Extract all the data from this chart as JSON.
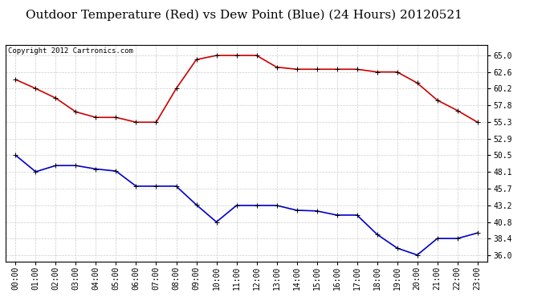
{
  "title": "Outdoor Temperature (Red) vs Dew Point (Blue) (24 Hours) 20120521",
  "copyright_text": "Copyright 2012 Cartronics.com",
  "hours": [
    "00:00",
    "01:00",
    "02:00",
    "03:00",
    "04:00",
    "05:00",
    "06:00",
    "07:00",
    "08:00",
    "09:00",
    "10:00",
    "11:00",
    "12:00",
    "13:00",
    "14:00",
    "15:00",
    "16:00",
    "17:00",
    "18:00",
    "19:00",
    "20:00",
    "21:00",
    "22:00",
    "23:00"
  ],
  "temp_red": [
    61.5,
    60.2,
    58.8,
    56.8,
    56.0,
    56.0,
    55.3,
    55.3,
    60.2,
    64.4,
    65.0,
    65.0,
    65.0,
    63.3,
    63.0,
    63.0,
    63.0,
    63.0,
    62.6,
    62.6,
    61.0,
    58.5,
    57.0,
    55.3
  ],
  "dew_blue": [
    50.5,
    48.1,
    49.0,
    49.0,
    48.5,
    48.2,
    46.0,
    46.0,
    46.0,
    43.3,
    40.8,
    43.2,
    43.2,
    43.2,
    42.5,
    42.4,
    41.8,
    41.8,
    39.0,
    37.0,
    36.0,
    38.4,
    38.4,
    39.2
  ],
  "ylim_min": 35.0,
  "ylim_max": 66.5,
  "yticks": [
    36.0,
    38.4,
    40.8,
    43.2,
    45.7,
    48.1,
    50.5,
    52.9,
    55.3,
    57.8,
    60.2,
    62.6,
    65.0
  ],
  "bg_color": "#ffffff",
  "grid_color": "#cccccc",
  "red_color": "#cc0000",
  "blue_color": "#0000cc",
  "title_fontsize": 11,
  "copyright_fontsize": 6.5,
  "tick_fontsize": 7,
  "marker": "+",
  "markersize": 5,
  "linewidth": 1.2
}
